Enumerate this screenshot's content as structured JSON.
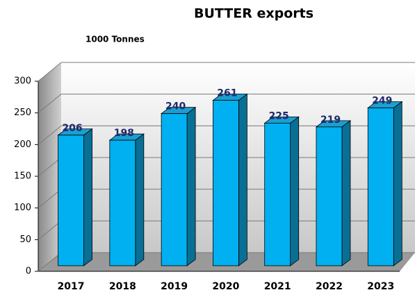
{
  "chart_data": {
    "type": "bar",
    "title": "BUTTER exports",
    "subtitle": "1000 Tonnes",
    "categories": [
      "2017",
      "2018",
      "2019",
      "2020",
      "2021",
      "2022",
      "2023"
    ],
    "values": [
      206,
      198,
      240,
      261,
      225,
      219,
      249
    ],
    "color": "#00b0f0",
    "ylim": [
      0,
      300
    ],
    "yticks": [
      0,
      50,
      100,
      150,
      200,
      250,
      300
    ],
    "grid": true
  }
}
